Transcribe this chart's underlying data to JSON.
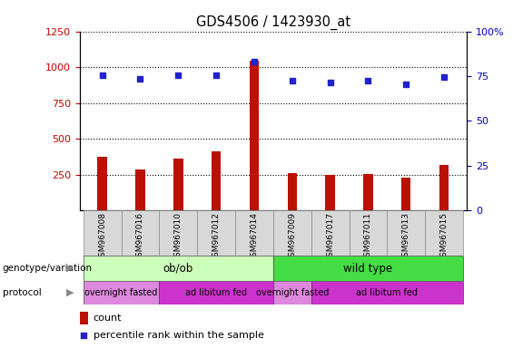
{
  "title": "GDS4506 / 1423930_at",
  "samples": [
    "GSM967008",
    "GSM967016",
    "GSM967010",
    "GSM967012",
    "GSM967014",
    "GSM967009",
    "GSM967017",
    "GSM967011",
    "GSM967013",
    "GSM967015"
  ],
  "counts": [
    375,
    285,
    360,
    415,
    1045,
    262,
    248,
    258,
    228,
    320
  ],
  "percentile_ranks": [
    75.5,
    73.5,
    75.5,
    75.5,
    83.0,
    72.5,
    71.5,
    72.5,
    70.5,
    74.5
  ],
  "bar_color": "#bb1100",
  "dot_color": "#2222cc",
  "ylim_left": [
    0,
    1250
  ],
  "ylim_right": [
    0,
    100
  ],
  "yticks_left": [
    250,
    500,
    750,
    1000,
    1250
  ],
  "yticks_right": [
    0,
    25,
    50,
    75,
    100
  ],
  "genotype_groups": [
    {
      "label": "ob/ob",
      "start": 0,
      "end": 4,
      "color": "#ccffbb"
    },
    {
      "label": "wild type",
      "start": 5,
      "end": 9,
      "color": "#44dd44"
    }
  ],
  "protocol_groups": [
    {
      "label": "overnight fasted",
      "start": 0,
      "end": 1,
      "color": "#dd88dd"
    },
    {
      "label": "ad libitum fed",
      "start": 2,
      "end": 4,
      "color": "#cc33cc"
    },
    {
      "label": "overnight fasted",
      "start": 5,
      "end": 5,
      "color": "#dd88dd"
    },
    {
      "label": "ad libitum fed",
      "start": 6,
      "end": 9,
      "color": "#cc33cc"
    }
  ],
  "bar_width": 0.25,
  "legend_count_color": "#bb1100",
  "legend_dot_color": "#2222cc",
  "tick_label_color_left": "#cc0000",
  "tick_label_color_right": "#0000cc"
}
